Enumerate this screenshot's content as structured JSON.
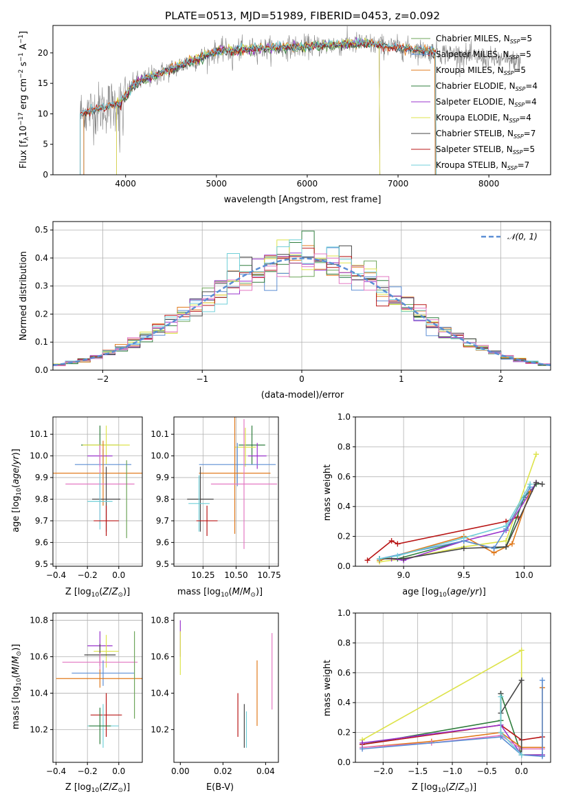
{
  "chart_data": [
    {
      "type": "line",
      "title": "PLATE=0513, MJD=51989, FIBERID=0453, z=0.092",
      "xlabel": "wavelength [Angstrom, rest frame]",
      "ylabel": "Flux [f",
      "xlim": [
        3200,
        8680
      ],
      "ylim": [
        0,
        24.5
      ],
      "xticks": [
        4000,
        5000,
        6000,
        7000,
        8000
      ],
      "yticks": [
        0,
        5,
        10,
        15,
        20
      ],
      "legend": "right",
      "series": [
        {
          "name": "Chabrier MILES, N",
          "sub": "SSP",
          "tail": "=5",
          "color": "#6ea55a"
        },
        {
          "name": "Salpeter MILES, N",
          "sub": "SSP",
          "tail": "=5",
          "color": "#5b8ed4"
        },
        {
          "name": "Kroupa MILES, N",
          "sub": "SSP",
          "tail": "=5",
          "color": "#e0791b"
        },
        {
          "name": "Chabrier ELODIE, N",
          "sub": "SSP",
          "tail": "=4",
          "color": "#2e7d3c"
        },
        {
          "name": "Salpeter ELODIE, N",
          "sub": "SSP",
          "tail": "=4",
          "color": "#9933cc"
        },
        {
          "name": "Kroupa ELODIE, N",
          "sub": "SSP",
          "tail": "=4",
          "color": "#dde34a"
        },
        {
          "name": "Chabrier STELIB, N",
          "sub": "SSP",
          "tail": "=7",
          "color": "#444444"
        },
        {
          "name": "Salpeter STELIB, N",
          "sub": "SSP",
          "tail": "=5",
          "color": "#b81414"
        },
        {
          "name": "Kroupa STELIB, N",
          "sub": "SSP",
          "tail": "=7",
          "color": "#6fcfd8"
        }
      ],
      "data_color": "#808080",
      "model_ranges": {
        "MILES": [
          3540,
          7410
        ],
        "ELODIE": [
          3900,
          6800
        ],
        "STELIB": [
          3500,
          7420
        ]
      }
    },
    {
      "type": "line",
      "xlabel": "(data-model)/error",
      "ylabel": "Normed distribution",
      "xlim": [
        -2.5,
        2.5
      ],
      "ylim": [
        0,
        0.53
      ],
      "xticks": [
        -2,
        -1,
        0,
        1,
        2
      ],
      "yticks": [
        0.0,
        0.1,
        0.2,
        0.3,
        0.4,
        0.5
      ],
      "grid": true,
      "legend": "top-right",
      "reference": {
        "name": "𝒩(0, 1)",
        "color": "#5b8ed4"
      },
      "bins": 40,
      "series_colors": [
        "#6ea55a",
        "#5b8ed4",
        "#e0791b",
        "#2e7d3c",
        "#9933cc",
        "#dde34a",
        "#444444",
        "#b81414",
        "#6fcfd8",
        "#e377c2"
      ]
    },
    {
      "type": "scatter",
      "xlabel": "Z [log",
      "ylabel": "age  [log",
      "xlim": [
        -0.42,
        0.15
      ],
      "ylim": [
        9.49,
        10.18
      ],
      "xticks": [
        -0.4,
        -0.2,
        0.0
      ],
      "yticks": [
        9.5,
        9.6,
        9.7,
        9.8,
        9.9,
        10.0,
        10.1
      ],
      "grid": true,
      "points": [
        {
          "x": -0.12,
          "y": 10.05,
          "xerr": 0.12,
          "yerr": 0.09,
          "color": "#2e7d3c"
        },
        {
          "x": -0.08,
          "y": 10.05,
          "xerr": 0.15,
          "yerr": 0.09,
          "color": "#dde34a"
        },
        {
          "x": -0.12,
          "y": 10.0,
          "xerr": 0.08,
          "yerr": 0.05,
          "color": "#9933cc"
        },
        {
          "x": -0.1,
          "y": 9.96,
          "xerr": 0.18,
          "yerr": 0.07,
          "color": "#5b8ed4"
        },
        {
          "x": -0.1,
          "y": 9.92,
          "xerr": 0.32,
          "yerr": 0.15,
          "color": "#e0791b"
        },
        {
          "x": -0.12,
          "y": 9.87,
          "xerr": 0.22,
          "yerr": 0.18,
          "color": "#e377c2"
        },
        {
          "x": -0.08,
          "y": 9.8,
          "xerr": 0.09,
          "yerr": 0.15,
          "color": "#444444"
        },
        {
          "x": -0.12,
          "y": 9.79,
          "xerr": 0.08,
          "yerr": 0.13,
          "color": "#6fcfd8"
        },
        {
          "x": -0.08,
          "y": 9.7,
          "xerr": 0.08,
          "yerr": 0.07,
          "color": "#b81414"
        },
        {
          "x": 0.05,
          "y": 9.8,
          "xerr": 0.0,
          "yerr": 0.18,
          "color": "#6ea55a"
        }
      ]
    },
    {
      "type": "scatter",
      "xlabel": "mass [log",
      "ylabel": "",
      "xlim": [
        10.03,
        10.82
      ],
      "ylim": [
        9.49,
        10.18
      ],
      "xticks": [
        10.25,
        10.5,
        10.75
      ],
      "yticks": [
        9.5,
        9.6,
        9.7,
        9.8,
        9.9,
        10.0,
        10.1
      ],
      "grid": true,
      "points": [
        {
          "x": 10.62,
          "y": 10.05,
          "xerr": 0.1,
          "yerr": 0.09,
          "color": "#2e7d3c"
        },
        {
          "x": 10.57,
          "y": 10.04,
          "xerr": 0.08,
          "yerr": 0.09,
          "color": "#dde34a"
        },
        {
          "x": 10.66,
          "y": 10.0,
          "xerr": 0.07,
          "yerr": 0.06,
          "color": "#9933cc"
        },
        {
          "x": 10.51,
          "y": 9.96,
          "xerr": 0.29,
          "yerr": 0.1,
          "color": "#5b8ed4"
        },
        {
          "x": 10.49,
          "y": 9.92,
          "xerr": 0.27,
          "yerr": 0.28,
          "color": "#e0791b"
        },
        {
          "x": 10.56,
          "y": 9.87,
          "xerr": 0.25,
          "yerr": 0.3,
          "color": "#e377c2"
        },
        {
          "x": 10.23,
          "y": 9.8,
          "xerr": 0.1,
          "yerr": 0.15,
          "color": "#444444"
        },
        {
          "x": 10.22,
          "y": 9.78,
          "xerr": 0.08,
          "yerr": 0.13,
          "color": "#6fcfd8"
        },
        {
          "x": 10.28,
          "y": 9.7,
          "xerr": 0.08,
          "yerr": 0.07,
          "color": "#b81414"
        }
      ]
    },
    {
      "type": "line",
      "xlabel": "age  [log",
      "ylabel": "mass weight",
      "xlim": [
        8.6,
        10.22
      ],
      "ylim": [
        0,
        1.0
      ],
      "xticks": [
        9.0,
        9.5,
        10.0
      ],
      "yticks": [
        0.0,
        0.2,
        0.4,
        0.6,
        0.8,
        1.0
      ],
      "grid": true,
      "series": [
        {
          "color": "#b81414",
          "x": [
            8.7,
            8.9,
            8.95,
            9.85,
            9.95
          ],
          "y": [
            0.04,
            0.17,
            0.15,
            0.3,
            0.33
          ]
        },
        {
          "color": "#2e7d3c",
          "x": [
            8.8,
            8.95,
            9.5,
            9.75,
            9.85,
            10.0,
            10.1
          ],
          "y": [
            0.05,
            0.05,
            0.17,
            0.12,
            0.13,
            0.46,
            0.55
          ]
        },
        {
          "color": "#dde34a",
          "x": [
            8.8,
            9.0,
            9.5,
            9.85,
            10.1
          ],
          "y": [
            0.03,
            0.05,
            0.13,
            0.17,
            0.75
          ]
        },
        {
          "color": "#9933cc",
          "x": [
            8.9,
            9.0,
            9.5,
            9.85,
            10.1
          ],
          "y": [
            0.05,
            0.04,
            0.17,
            0.24,
            0.56
          ]
        },
        {
          "color": "#e0791b",
          "x": [
            8.8,
            9.5,
            9.75,
            9.9,
            10.05
          ],
          "y": [
            0.04,
            0.2,
            0.09,
            0.15,
            0.5
          ]
        },
        {
          "color": "#444444",
          "x": [
            8.8,
            9.0,
            9.5,
            9.85,
            10.1,
            10.15
          ],
          "y": [
            0.05,
            0.05,
            0.12,
            0.13,
            0.56,
            0.55
          ]
        },
        {
          "color": "#5b8ed4",
          "x": [
            8.8,
            9.5,
            9.75,
            9.85,
            10.05
          ],
          "y": [
            0.05,
            0.17,
            0.12,
            0.25,
            0.53
          ]
        },
        {
          "color": "#6fcfd8",
          "x": [
            8.8,
            8.95,
            9.5,
            9.85,
            10.05
          ],
          "y": [
            0.05,
            0.07,
            0.19,
            0.27,
            0.55
          ]
        }
      ]
    },
    {
      "type": "scatter",
      "xlabel": "Z [log",
      "ylabel": "mass [log",
      "xlim": [
        -0.42,
        0.15
      ],
      "ylim": [
        10.02,
        10.84
      ],
      "xticks": [
        -0.4,
        -0.2,
        0.0
      ],
      "yticks": [
        10.2,
        10.4,
        10.6,
        10.8
      ],
      "grid": true,
      "points": [
        {
          "x": -0.12,
          "y": 10.66,
          "xerr": 0.08,
          "yerr": 0.08,
          "color": "#9933cc"
        },
        {
          "x": -0.08,
          "y": 10.63,
          "xerr": 0.08,
          "yerr": 0.09,
          "color": "#dde34a"
        },
        {
          "x": -0.12,
          "y": 10.61,
          "xerr": 0.1,
          "yerr": 0.06,
          "color": "#444444"
        },
        {
          "x": -0.12,
          "y": 10.57,
          "xerr": 0.24,
          "yerr": 0.05,
          "color": "#e377c2"
        },
        {
          "x": -0.1,
          "y": 10.51,
          "xerr": 0.2,
          "yerr": 0.07,
          "color": "#5b8ed4"
        },
        {
          "x": -0.12,
          "y": 10.48,
          "xerr": 0.28,
          "yerr": 0.05,
          "color": "#e0791b"
        },
        {
          "x": -0.08,
          "y": 10.28,
          "xerr": 0.1,
          "yerr": 0.12,
          "color": "#b81414"
        },
        {
          "x": -0.1,
          "y": 10.22,
          "xerr": 0.1,
          "yerr": 0.12,
          "color": "#6fcfd8"
        },
        {
          "x": -0.12,
          "y": 10.22,
          "xerr": 0.07,
          "yerr": 0.1,
          "color": "#2e7d3c"
        },
        {
          "x": 0.1,
          "y": 10.5,
          "xerr": 0.0,
          "yerr": 0.24,
          "color": "#6ea55a"
        }
      ]
    },
    {
      "type": "scatter",
      "xlabel": "E(B-V)",
      "ylabel": "",
      "xlim": [
        -0.003,
        0.046
      ],
      "ylim": [
        10.02,
        10.84
      ],
      "xticks": [
        0.0,
        0.02,
        0.04
      ],
      "yticks": [
        10.2,
        10.4,
        10.6,
        10.8
      ],
      "grid": false,
      "points": [
        {
          "x": 0.0,
          "y": 10.7,
          "yerr": 0.1,
          "color": "#9933cc"
        },
        {
          "x": 0.0,
          "y": 10.62,
          "yerr": 0.12,
          "color": "#dde34a"
        },
        {
          "x": 0.027,
          "y": 10.28,
          "yerr": 0.12,
          "color": "#b81414"
        },
        {
          "x": 0.03,
          "y": 10.22,
          "yerr": 0.12,
          "color": "#444444"
        },
        {
          "x": 0.031,
          "y": 10.2,
          "yerr": 0.1,
          "color": "#6fcfd8"
        },
        {
          "x": 0.036,
          "y": 10.4,
          "yerr": 0.18,
          "color": "#e0791b"
        },
        {
          "x": 0.043,
          "y": 10.52,
          "yerr": 0.21,
          "color": "#e377c2"
        }
      ]
    },
    {
      "type": "line",
      "xlabel": "Z [log",
      "ylabel": "mass weight",
      "xlim": [
        -2.4,
        0.42
      ],
      "ylim": [
        0,
        1.0
      ],
      "xticks": [
        -2.0,
        -1.5,
        -1.0,
        -0.5,
        0.0
      ],
      "yticks": [
        0.0,
        0.2,
        0.4,
        0.6,
        0.8,
        1.0
      ],
      "grid": true,
      "series": [
        {
          "color": "#dde34a",
          "x": [
            -2.3,
            0.0,
            0.0,
            0.3
          ],
          "y": [
            0.15,
            0.75,
            0.05,
            0.05
          ]
        },
        {
          "color": "#2e7d3c",
          "x": [
            -2.3,
            -0.3,
            -0.3,
            0.0,
            0.3
          ],
          "y": [
            0.12,
            0.28,
            0.46,
            0.05,
            0.05
          ]
        },
        {
          "color": "#b81414",
          "x": [
            -2.3,
            -0.3,
            0.0,
            0.3
          ],
          "y": [
            0.12,
            0.25,
            0.15,
            0.17
          ]
        },
        {
          "color": "#9933cc",
          "x": [
            -2.3,
            -0.3,
            0.0,
            0.3
          ],
          "y": [
            0.13,
            0.25,
            0.05,
            0.05
          ]
        },
        {
          "color": "#e0791b",
          "x": [
            -2.3,
            -1.3,
            -0.3,
            0.0,
            0.3,
            0.3
          ],
          "y": [
            0.1,
            0.14,
            0.2,
            0.1,
            0.1,
            0.5
          ]
        },
        {
          "color": "#e377c2",
          "x": [
            -2.3,
            -1.3,
            -0.3,
            0.0,
            0.3
          ],
          "y": [
            0.1,
            0.13,
            0.18,
            0.09,
            0.09
          ]
        },
        {
          "color": "#5b8ed4",
          "x": [
            -2.3,
            -0.3,
            0.0,
            0.3,
            0.3
          ],
          "y": [
            0.09,
            0.17,
            0.05,
            0.04,
            0.55
          ]
        },
        {
          "color": "#444444",
          "x": [
            -0.3,
            -0.3,
            0.0,
            0.0
          ],
          "y": [
            0.46,
            0.33,
            0.55,
            0.05
          ]
        },
        {
          "color": "#6fcfd8",
          "x": [
            -0.3,
            -0.3,
            0.0
          ],
          "y": [
            0.44,
            0.2,
            0.05
          ]
        }
      ]
    }
  ]
}
